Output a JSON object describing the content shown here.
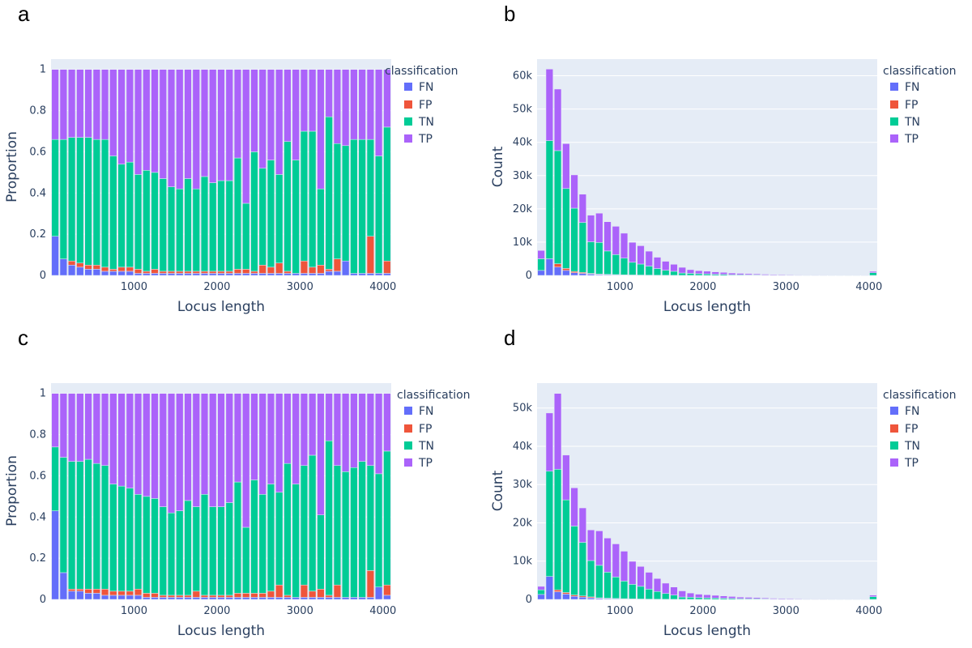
{
  "chart_data": [
    {
      "panel": "a",
      "type": "bar",
      "barmode": "stack",
      "xlabel": "Locus length",
      "ylabel": "Proportion",
      "xlim": [
        0,
        4100
      ],
      "ylim": [
        0,
        1.05
      ],
      "xticks": [
        1000,
        2000,
        3000,
        4000
      ],
      "yticks": [
        {
          "v": 0,
          "t": "0"
        },
        {
          "v": 0.2,
          "t": "0.2"
        },
        {
          "v": 0.4,
          "t": "0.4"
        },
        {
          "v": 0.6,
          "t": "0.6"
        },
        {
          "v": 0.8,
          "t": "0.8"
        },
        {
          "v": 1,
          "t": "1"
        }
      ],
      "legend_title": "classification",
      "legend_position": "top-right",
      "categories": [
        50,
        150,
        250,
        350,
        450,
        550,
        650,
        750,
        850,
        950,
        1050,
        1150,
        1250,
        1350,
        1450,
        1550,
        1650,
        1750,
        1850,
        1950,
        2050,
        2150,
        2250,
        2350,
        2450,
        2550,
        2650,
        2750,
        2850,
        2950,
        3050,
        3150,
        3250,
        3350,
        3450,
        3550,
        3650,
        3750,
        3850,
        3950,
        4050
      ],
      "series": [
        {
          "name": "FN",
          "values": [
            0.19,
            0.08,
            0.05,
            0.04,
            0.03,
            0.03,
            0.02,
            0.02,
            0.02,
            0.02,
            0.01,
            0.01,
            0.01,
            0.01,
            0.01,
            0.01,
            0.01,
            0.01,
            0.01,
            0.01,
            0.01,
            0.01,
            0.01,
            0.01,
            0.01,
            0.01,
            0.01,
            0.01,
            0.01,
            0.01,
            0.01,
            0.01,
            0.01,
            0.02,
            0.02,
            0.07,
            0.01,
            0.01,
            0.01,
            0.01,
            0.01
          ]
        },
        {
          "name": "FP",
          "values": [
            0.0,
            0.0,
            0.02,
            0.02,
            0.02,
            0.02,
            0.02,
            0.01,
            0.02,
            0.02,
            0.02,
            0.01,
            0.02,
            0.01,
            0.01,
            0.01,
            0.01,
            0.01,
            0.01,
            0.01,
            0.01,
            0.01,
            0.02,
            0.02,
            0.01,
            0.04,
            0.03,
            0.05,
            0.01,
            0.0,
            0.06,
            0.03,
            0.04,
            0.01,
            0.06,
            0.0,
            0.0,
            0.0,
            0.18,
            0.0,
            0.06
          ]
        },
        {
          "name": "TN",
          "values": [
            0.47,
            0.58,
            0.6,
            0.61,
            0.62,
            0.61,
            0.62,
            0.55,
            0.5,
            0.51,
            0.46,
            0.49,
            0.47,
            0.45,
            0.41,
            0.4,
            0.45,
            0.4,
            0.46,
            0.43,
            0.44,
            0.44,
            0.54,
            0.32,
            0.58,
            0.47,
            0.52,
            0.43,
            0.63,
            0.55,
            0.63,
            0.66,
            0.37,
            0.74,
            0.56,
            0.56,
            0.65,
            0.65,
            0.47,
            0.57,
            0.65
          ]
        },
        {
          "name": "TP",
          "values": [
            0.34,
            0.34,
            0.33,
            0.33,
            0.33,
            0.34,
            0.34,
            0.42,
            0.46,
            0.45,
            0.51,
            0.49,
            0.5,
            0.53,
            0.57,
            0.58,
            0.53,
            0.58,
            0.52,
            0.55,
            0.54,
            0.54,
            0.43,
            0.65,
            0.4,
            0.48,
            0.44,
            0.51,
            0.35,
            0.44,
            0.3,
            0.3,
            0.58,
            0.23,
            0.36,
            0.37,
            0.34,
            0.34,
            0.34,
            0.42,
            0.28
          ]
        }
      ]
    },
    {
      "panel": "b",
      "type": "bar",
      "barmode": "stack",
      "xlabel": "Locus length",
      "ylabel": "Count",
      "xlim": [
        0,
        4100
      ],
      "ylim": [
        0,
        65000
      ],
      "xticks": [
        1000,
        2000,
        3000,
        4000
      ],
      "yticks": [
        {
          "v": 0,
          "t": "0"
        },
        {
          "v": 10000,
          "t": "10k"
        },
        {
          "v": 20000,
          "t": "20k"
        },
        {
          "v": 30000,
          "t": "30k"
        },
        {
          "v": 40000,
          "t": "40k"
        },
        {
          "v": 50000,
          "t": "50k"
        },
        {
          "v": 60000,
          "t": "60k"
        }
      ],
      "legend_title": "classification",
      "legend_position": "top-right",
      "categories": [
        50,
        150,
        250,
        350,
        450,
        550,
        650,
        750,
        850,
        950,
        1050,
        1150,
        1250,
        1350,
        1450,
        1550,
        1650,
        1750,
        1850,
        1950,
        2050,
        2150,
        2250,
        2350,
        2450,
        2550,
        2650,
        2750,
        2850,
        2950,
        3050,
        3150,
        3250,
        3350,
        3450,
        3550,
        3650,
        3750,
        3850,
        3950,
        4050
      ],
      "series": [
        {
          "name": "FN",
          "values": [
            1500,
            5000,
            2500,
            1500,
            800,
            600,
            400,
            250,
            200,
            150,
            100,
            80,
            60,
            40,
            30,
            20,
            15,
            10,
            8,
            6,
            5,
            4,
            3,
            3,
            2,
            2,
            2,
            2,
            1,
            1,
            1,
            1,
            1,
            1,
            1,
            1,
            1,
            1,
            1,
            1,
            1
          ]
        },
        {
          "name": "FP",
          "values": [
            0,
            0,
            1000,
            600,
            400,
            300,
            200,
            150,
            130,
            100,
            80,
            60,
            50,
            40,
            30,
            20,
            15,
            10,
            8,
            6,
            5,
            4,
            3,
            3,
            2,
            2,
            2,
            2,
            1,
            1,
            1,
            1,
            1,
            1,
            1,
            1,
            1,
            1,
            1,
            1,
            1
          ]
        },
        {
          "name": "TN",
          "values": [
            3500,
            35500,
            34000,
            24000,
            19000,
            15000,
            9500,
            9500,
            7000,
            6000,
            5000,
            3800,
            3300,
            2700,
            2000,
            1500,
            1200,
            700,
            600,
            500,
            450,
            350,
            300,
            200,
            200,
            150,
            150,
            100,
            100,
            80,
            70,
            60,
            50,
            40,
            40,
            30,
            25,
            20,
            15,
            15,
            800
          ]
        },
        {
          "name": "TP",
          "values": [
            2500,
            21500,
            18500,
            13500,
            10000,
            8500,
            8000,
            8800,
            8800,
            8500,
            7500,
            6000,
            5500,
            4500,
            3400,
            2700,
            2100,
            1700,
            1100,
            900,
            800,
            700,
            600,
            500,
            400,
            350,
            300,
            250,
            200,
            180,
            160,
            140,
            120,
            100,
            90,
            80,
            70,
            60,
            50,
            40,
            400
          ]
        }
      ]
    },
    {
      "panel": "c",
      "type": "bar",
      "barmode": "stack",
      "xlabel": "Locus length",
      "ylabel": "Proportion",
      "xlim": [
        0,
        4100
      ],
      "ylim": [
        0,
        1.05
      ],
      "xticks": [
        1000,
        2000,
        3000,
        4000
      ],
      "yticks": [
        {
          "v": 0,
          "t": "0"
        },
        {
          "v": 0.2,
          "t": "0.2"
        },
        {
          "v": 0.4,
          "t": "0.4"
        },
        {
          "v": 0.6,
          "t": "0.6"
        },
        {
          "v": 0.8,
          "t": "0.8"
        },
        {
          "v": 1,
          "t": "1"
        }
      ],
      "legend_title": "classification",
      "legend_position": "top-right",
      "categories": [
        50,
        150,
        250,
        350,
        450,
        550,
        650,
        750,
        850,
        950,
        1050,
        1150,
        1250,
        1350,
        1450,
        1550,
        1650,
        1750,
        1850,
        1950,
        2050,
        2150,
        2250,
        2350,
        2450,
        2550,
        2650,
        2750,
        2850,
        2950,
        3050,
        3150,
        3250,
        3350,
        3450,
        3550,
        3650,
        3750,
        3850,
        3950,
        4050
      ],
      "series": [
        {
          "name": "FN",
          "values": [
            0.43,
            0.13,
            0.04,
            0.04,
            0.03,
            0.03,
            0.02,
            0.02,
            0.02,
            0.02,
            0.02,
            0.01,
            0.01,
            0.01,
            0.01,
            0.01,
            0.01,
            0.01,
            0.01,
            0.01,
            0.01,
            0.01,
            0.01,
            0.01,
            0.01,
            0.01,
            0.01,
            0.01,
            0.01,
            0.01,
            0.01,
            0.01,
            0.01,
            0.01,
            0.01,
            0.01,
            0.01,
            0.01,
            0.01,
            0.06,
            0.02
          ]
        },
        {
          "name": "FP",
          "values": [
            0.0,
            0.0,
            0.01,
            0.01,
            0.02,
            0.02,
            0.03,
            0.02,
            0.02,
            0.02,
            0.03,
            0.02,
            0.02,
            0.01,
            0.01,
            0.01,
            0.01,
            0.03,
            0.01,
            0.01,
            0.01,
            0.01,
            0.02,
            0.02,
            0.02,
            0.02,
            0.03,
            0.06,
            0.01,
            0.0,
            0.06,
            0.03,
            0.04,
            0.01,
            0.06,
            0.0,
            0.0,
            0.0,
            0.13,
            0.0,
            0.05
          ]
        },
        {
          "name": "TN",
          "values": [
            0.31,
            0.56,
            0.62,
            0.62,
            0.63,
            0.61,
            0.6,
            0.52,
            0.51,
            0.5,
            0.46,
            0.47,
            0.46,
            0.43,
            0.4,
            0.41,
            0.46,
            0.41,
            0.49,
            0.43,
            0.43,
            0.45,
            0.54,
            0.32,
            0.55,
            0.48,
            0.52,
            0.45,
            0.64,
            0.55,
            0.58,
            0.66,
            0.36,
            0.75,
            0.58,
            0.61,
            0.63,
            0.66,
            0.51,
            0.55,
            0.65
          ]
        },
        {
          "name": "TP",
          "values": [
            0.26,
            0.31,
            0.33,
            0.33,
            0.32,
            0.34,
            0.35,
            0.44,
            0.45,
            0.46,
            0.49,
            0.5,
            0.51,
            0.55,
            0.58,
            0.57,
            0.52,
            0.55,
            0.49,
            0.55,
            0.55,
            0.53,
            0.43,
            0.65,
            0.42,
            0.49,
            0.44,
            0.48,
            0.34,
            0.44,
            0.35,
            0.3,
            0.59,
            0.23,
            0.35,
            0.38,
            0.36,
            0.33,
            0.35,
            0.39,
            0.28
          ]
        }
      ]
    },
    {
      "panel": "d",
      "type": "bar",
      "barmode": "stack",
      "xlabel": "Locus length",
      "ylabel": "Count",
      "xlim": [
        0,
        4100
      ],
      "ylim": [
        0,
        56500
      ],
      "xticks": [
        1000,
        2000,
        3000,
        4000
      ],
      "yticks": [
        {
          "v": 0,
          "t": "0"
        },
        {
          "v": 10000,
          "t": "10k"
        },
        {
          "v": 20000,
          "t": "20k"
        },
        {
          "v": 30000,
          "t": "30k"
        },
        {
          "v": 40000,
          "t": "40k"
        },
        {
          "v": 50000,
          "t": "50k"
        }
      ],
      "legend_title": "classification",
      "legend_position": "top-right",
      "categories": [
        50,
        150,
        250,
        350,
        450,
        550,
        650,
        750,
        850,
        950,
        1050,
        1150,
        1250,
        1350,
        1450,
        1550,
        1650,
        1750,
        1850,
        1950,
        2050,
        2150,
        2250,
        2350,
        2450,
        2550,
        2650,
        2750,
        2850,
        2950,
        3050,
        3150,
        3250,
        3350,
        3450,
        3550,
        3650,
        3750,
        3850,
        3950,
        4050
      ],
      "series": [
        {
          "name": "FN",
          "values": [
            1300,
            6000,
            2000,
            1400,
            800,
            600,
            400,
            250,
            200,
            150,
            100,
            80,
            60,
            40,
            30,
            20,
            15,
            10,
            8,
            6,
            5,
            4,
            3,
            3,
            2,
            2,
            2,
            2,
            1,
            1,
            1,
            1,
            1,
            1,
            1,
            1,
            1,
            1,
            1,
            1,
            1
          ]
        },
        {
          "name": "FP",
          "values": [
            0,
            0,
            500,
            400,
            350,
            300,
            250,
            150,
            120,
            100,
            90,
            60,
            50,
            40,
            30,
            20,
            15,
            10,
            8,
            6,
            5,
            4,
            3,
            3,
            2,
            2,
            2,
            2,
            1,
            1,
            1,
            1,
            1,
            1,
            1,
            1,
            1,
            1,
            1,
            1,
            1
          ]
        },
        {
          "name": "TN",
          "values": [
            1200,
            27500,
            31500,
            24200,
            18000,
            14000,
            9500,
            8500,
            6800,
            5600,
            4600,
            3800,
            3300,
            2600,
            2000,
            1500,
            1100,
            600,
            550,
            450,
            400,
            350,
            300,
            250,
            200,
            180,
            160,
            130,
            100,
            80,
            70,
            60,
            50,
            40,
            40,
            30,
            25,
            20,
            15,
            15,
            700
          ]
        },
        {
          "name": "TP",
          "values": [
            900,
            15200,
            19800,
            11700,
            10000,
            9000,
            8000,
            9000,
            8900,
            8650,
            7800,
            6000,
            5200,
            4400,
            3400,
            2700,
            2100,
            1600,
            1100,
            900,
            800,
            700,
            600,
            500,
            400,
            350,
            300,
            250,
            200,
            180,
            160,
            140,
            120,
            100,
            90,
            80,
            70,
            60,
            50,
            40,
            400
          ]
        }
      ]
    }
  ],
  "colors": {
    "FN": "#636efa",
    "FP": "#ef553b",
    "TN": "#00cc96",
    "TP": "#ab63fa",
    "plot_bg": "#e5ecf6",
    "grid": "#ffffff",
    "text": "#2a3f5f"
  }
}
